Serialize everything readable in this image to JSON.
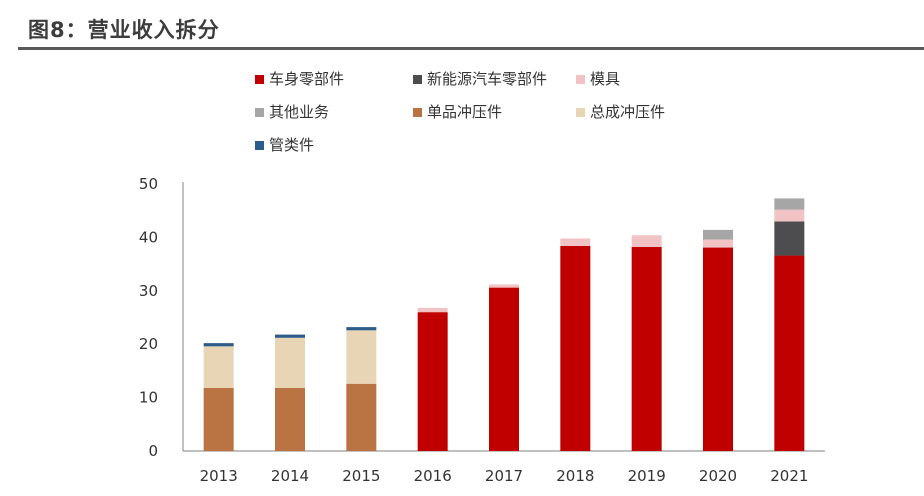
{
  "title": "图8：营业收入拆分",
  "chart_data": {
    "type": "bar",
    "stacked": true,
    "categories": [
      "2013",
      "2014",
      "2015",
      "2016",
      "2017",
      "2018",
      "2019",
      "2020",
      "2021"
    ],
    "ylim": [
      0,
      50
    ],
    "yticks": [
      0,
      10,
      20,
      30,
      40,
      50
    ],
    "grid": false,
    "legend_position": "top",
    "legend_order": [
      "车身零部件",
      "新能源汽车零部件",
      "模具",
      "其他业务",
      "单品冲压件",
      "总成冲压件",
      "管类件"
    ],
    "series": [
      {
        "name": "单品冲压件",
        "color": "#BA7443",
        "values": [
          11.8,
          11.8,
          12.6,
          0,
          0,
          0,
          0,
          0,
          0
        ]
      },
      {
        "name": "总成冲压件",
        "color": "#E8D5B5",
        "values": [
          7.8,
          9.4,
          10.0,
          0,
          0,
          0,
          0,
          0,
          0
        ]
      },
      {
        "name": "管类件",
        "color": "#2E5C8A",
        "values": [
          0.6,
          0.6,
          0.6,
          0,
          0,
          0,
          0,
          0,
          0
        ]
      },
      {
        "name": "车身零部件",
        "color": "#C00000",
        "values": [
          0,
          0,
          0,
          26.0,
          30.6,
          38.4,
          38.2,
          38.1,
          36.6
        ]
      },
      {
        "name": "新能源汽车零部件",
        "color": "#4D4D4F",
        "values": [
          0,
          0,
          0,
          0,
          0,
          0,
          0,
          0,
          6.4
        ]
      },
      {
        "name": "模具",
        "color": "#F2C3C5",
        "values": [
          0,
          0,
          0,
          0.8,
          0.6,
          1.4,
          2.2,
          1.5,
          2.2
        ]
      },
      {
        "name": "其他业务",
        "color": "#A6A6A6",
        "values": [
          0,
          0,
          0,
          0,
          0,
          0,
          0,
          1.8,
          2.1
        ]
      }
    ]
  }
}
